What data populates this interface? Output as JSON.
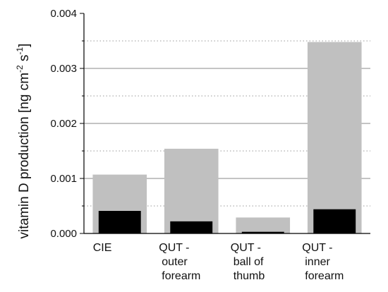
{
  "chart_data": {
    "type": "bar",
    "title": "",
    "xlabel": "",
    "ylabel": {
      "pre": "vitamin D production [ng cm",
      "sup1": "-2",
      "mid": " s",
      "sup2": "-1",
      "post": "]"
    },
    "categories": [
      [
        "CIE"
      ],
      [
        "QUT -",
        "outer",
        "forearm"
      ],
      [
        "QUT -",
        "ball of",
        "thumb"
      ],
      [
        "QUT -",
        "inner",
        "forearm"
      ]
    ],
    "series": [
      {
        "color": "#c0c0c0",
        "values": [
          0.00107,
          0.00154,
          0.00029,
          0.00348
        ]
      },
      {
        "color": "#000000",
        "values": [
          0.00041,
          0.00022,
          3e-05,
          0.00044
        ]
      }
    ],
    "ylim": [
      0,
      0.004
    ],
    "yticks": [
      "0.000",
      "0.001",
      "0.002",
      "0.003",
      "0.004"
    ],
    "major_grid": [
      0.001,
      0.002,
      0.003
    ],
    "minor_grid": [
      0.0005,
      0.0015,
      0.0025,
      0.0035
    ],
    "grid": true,
    "legend": "none"
  }
}
